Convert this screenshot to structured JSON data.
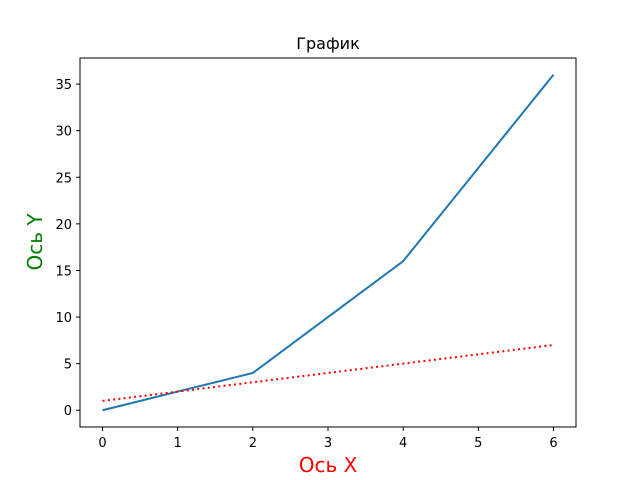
{
  "chart_data": {
    "type": "line",
    "title": "График",
    "xlabel": "Ось X",
    "ylabel": "Ось Y",
    "xlabel_color": "#ff0000",
    "ylabel_color": "#008000",
    "xlim": [
      -0.3,
      6.3
    ],
    "ylim": [
      -1.8,
      37.8
    ],
    "xticks": [
      0,
      1,
      2,
      3,
      4,
      5,
      6
    ],
    "yticks": [
      0,
      5,
      10,
      15,
      20,
      25,
      30,
      35
    ],
    "grid": false,
    "legend": false,
    "series": [
      {
        "x": [
          0,
          1,
          2,
          3,
          4,
          5,
          6
        ],
        "y": [
          0,
          2,
          4,
          10,
          16,
          26,
          36
        ],
        "color": "#1f77b4",
        "line_style": "solid"
      },
      {
        "x": [
          0,
          1,
          2,
          3,
          4,
          5,
          6
        ],
        "y": [
          1,
          2,
          3,
          4,
          5,
          6,
          7
        ],
        "color": "#ff0000",
        "line_style": "dotted"
      }
    ]
  }
}
